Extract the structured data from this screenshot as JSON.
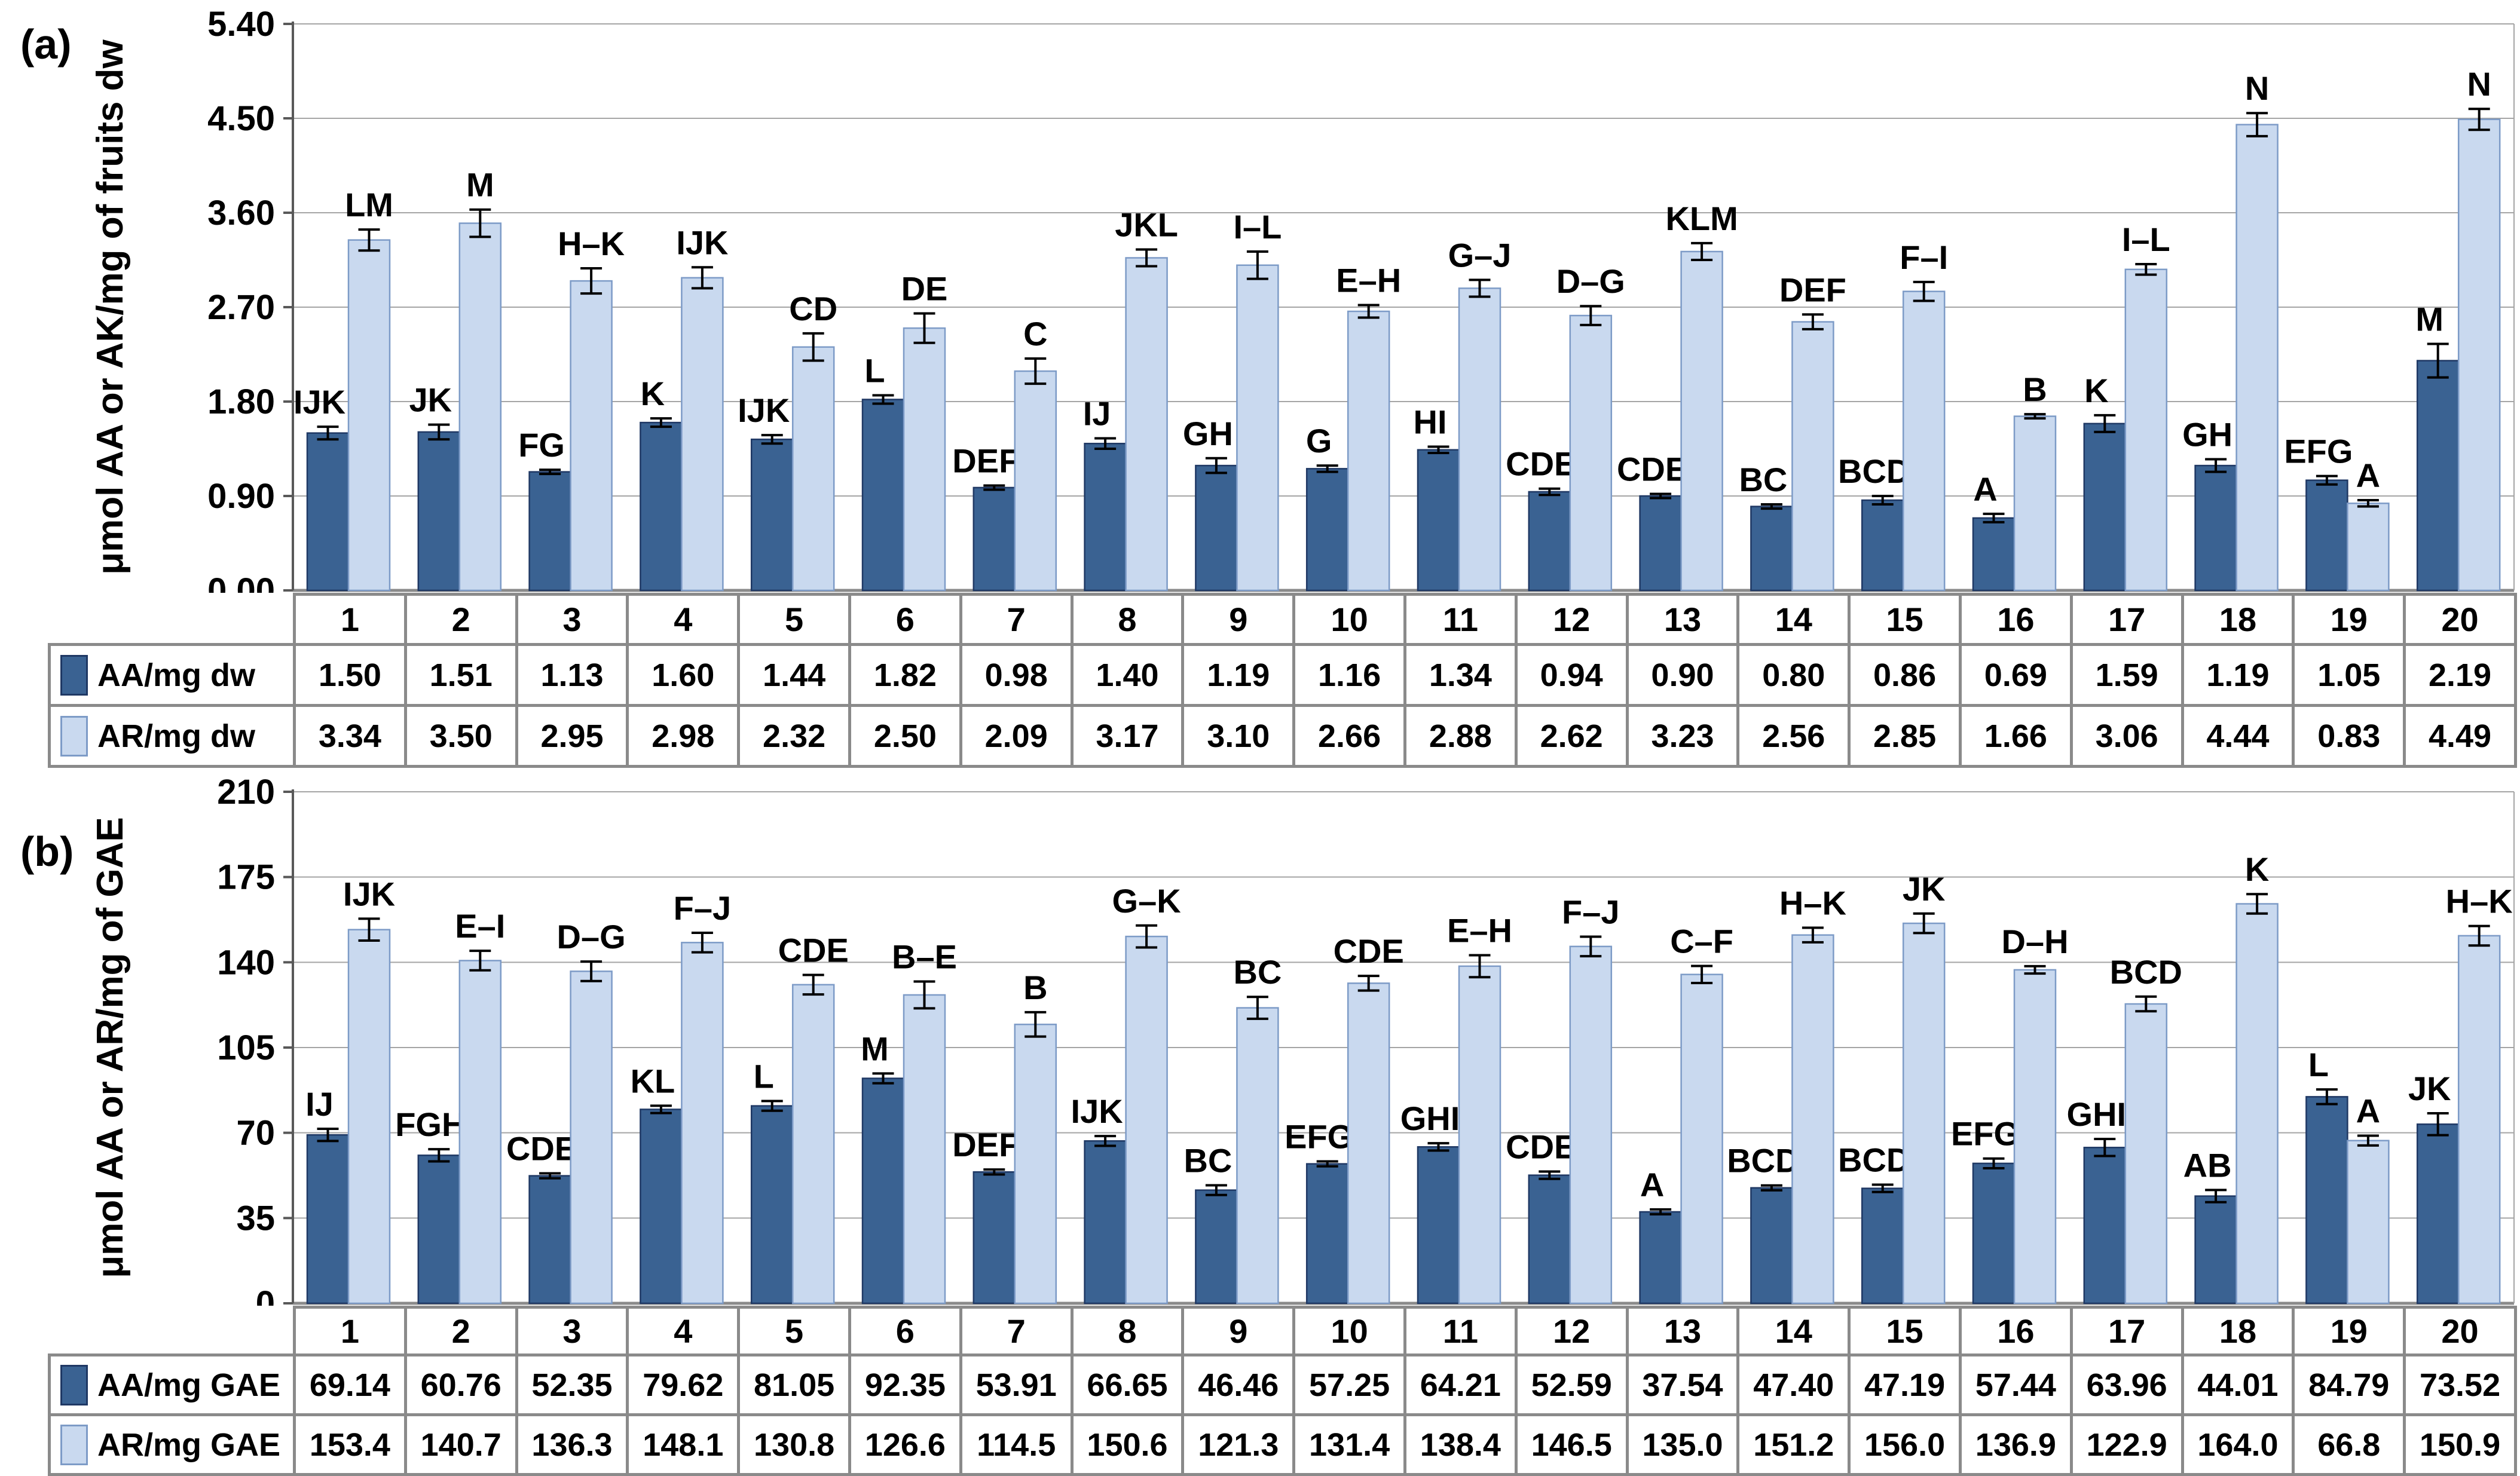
{
  "colors": {
    "aa_fill": "#3A6292",
    "aa_stroke": "#1F3864",
    "ar_fill": "#C9D9EF",
    "ar_stroke": "#7D9BC7",
    "gridline": "#A5A5A5",
    "axis": "#595959",
    "baseline": "#8A8A8A",
    "error_bar": "#000000",
    "table_border": "#8A8A8A"
  },
  "chart_data": [
    {
      "type": "bar",
      "panel_label": "(a)",
      "y_title": "μmol AA or AK/mg of fruits dw",
      "ylim": [
        0,
        5.4
      ],
      "y_ticks": [
        "0.00",
        "0.90",
        "1.80",
        "2.70",
        "3.60",
        "4.50",
        "5.40"
      ],
      "grid": true,
      "error_bars": true,
      "legend_position": "table-left",
      "categories": [
        "1",
        "2",
        "3",
        "4",
        "5",
        "6",
        "7",
        "8",
        "9",
        "10",
        "11",
        "12",
        "13",
        "14",
        "15",
        "16",
        "17",
        "18",
        "19",
        "20"
      ],
      "series": [
        {
          "name": "AA/mg dw",
          "values": [
            1.5,
            1.51,
            1.13,
            1.6,
            1.44,
            1.82,
            0.98,
            1.4,
            1.19,
            1.16,
            1.34,
            0.94,
            0.9,
            0.8,
            0.86,
            0.69,
            1.59,
            1.19,
            1.05,
            2.19
          ],
          "table_values": [
            "1.50",
            "1.51",
            "1.13",
            "1.60",
            "1.44",
            "1.82",
            "0.98",
            "1.40",
            "1.19",
            "1.16",
            "1.34",
            "0.94",
            "0.90",
            "0.80",
            "0.86",
            "0.69",
            "1.59",
            "1.19",
            "1.05",
            "2.19"
          ],
          "errors": [
            0.06,
            0.07,
            0.02,
            0.04,
            0.04,
            0.04,
            0.02,
            0.05,
            0.07,
            0.03,
            0.03,
            0.03,
            0.02,
            0.02,
            0.04,
            0.04,
            0.08,
            0.06,
            0.04,
            0.16
          ],
          "letters": [
            "IJK",
            "JK",
            "FG",
            "K",
            "IJK",
            "L",
            "DEF",
            "IJ",
            "GH",
            "G",
            "HI",
            "CDE",
            "CDE",
            "BC",
            "BCD",
            "A",
            "K",
            "GH",
            "EFG",
            "M"
          ]
        },
        {
          "name": "AR/mg dw",
          "values": [
            3.34,
            3.5,
            2.95,
            2.98,
            2.32,
            2.5,
            2.09,
            3.17,
            3.1,
            2.66,
            2.88,
            2.62,
            3.23,
            2.56,
            2.85,
            1.66,
            3.06,
            4.44,
            0.83,
            4.49
          ],
          "table_values": [
            "3.34",
            "3.50",
            "2.95",
            "2.98",
            "2.32",
            "2.50",
            "2.09",
            "3.17",
            "3.10",
            "2.66",
            "2.88",
            "2.62",
            "3.23",
            "2.56",
            "2.85",
            "1.66",
            "3.06",
            "4.44",
            "0.83",
            "4.49"
          ],
          "errors": [
            0.1,
            0.13,
            0.12,
            0.1,
            0.13,
            0.14,
            0.12,
            0.08,
            0.13,
            0.06,
            0.08,
            0.09,
            0.08,
            0.07,
            0.09,
            0.02,
            0.05,
            0.11,
            0.03,
            0.1
          ],
          "letters": [
            "LM",
            "M",
            "H–K",
            "IJK",
            "CD",
            "DE",
            "C",
            "JKL",
            "I–L",
            "E–H",
            "G–J",
            "D–G",
            "KLM",
            "DEF",
            "F–I",
            "B",
            "I–L",
            "N",
            "A",
            "N"
          ]
        }
      ]
    },
    {
      "type": "bar",
      "panel_label": "(b)",
      "y_title": "μmol AA or AR/mg of GAE",
      "ylim": [
        0,
        210
      ],
      "y_ticks": [
        "0",
        "35",
        "70",
        "105",
        "140",
        "175",
        "210"
      ],
      "grid": true,
      "error_bars": true,
      "legend_position": "table-left",
      "categories": [
        "1",
        "2",
        "3",
        "4",
        "5",
        "6",
        "7",
        "8",
        "9",
        "10",
        "11",
        "12",
        "13",
        "14",
        "15",
        "16",
        "17",
        "18",
        "19",
        "20"
      ],
      "series": [
        {
          "name": "AA/mg GAE",
          "values": [
            69.14,
            60.76,
            52.35,
            79.62,
            81.05,
            92.35,
            53.91,
            66.65,
            46.46,
            57.25,
            64.21,
            52.59,
            37.54,
            47.4,
            47.19,
            57.44,
            63.96,
            44.01,
            84.79,
            73.52
          ],
          "table_values": [
            "69.14",
            "60.76",
            "52.35",
            "79.62",
            "81.05",
            "92.35",
            "53.91",
            "66.65",
            "46.46",
            "57.25",
            "64.21",
            "52.59",
            "37.54",
            "47.40",
            "47.19",
            "57.44",
            "63.96",
            "44.01",
            "84.79",
            "73.52"
          ],
          "errors": [
            2.5,
            2.5,
            1.0,
            1.5,
            2.0,
            2.0,
            1.0,
            2.0,
            2.0,
            1.0,
            1.5,
            1.5,
            1.0,
            1.0,
            1.5,
            2.0,
            3.5,
            2.5,
            3.0,
            4.5
          ],
          "letters": [
            "IJ",
            "FGH",
            "CDE",
            "KL",
            "L",
            "M",
            "DEF",
            "IJK",
            "BC",
            "EFG",
            "GHI",
            "CDE",
            "A",
            "BCD",
            "BCD",
            "EFG",
            "GHI",
            "AB",
            "L",
            "JK"
          ]
        },
        {
          "name": "AR/mg GAE",
          "values": [
            153.4,
            140.7,
            136.3,
            148.1,
            130.8,
            126.6,
            114.5,
            150.6,
            121.3,
            131.4,
            138.4,
            146.5,
            135.0,
            151.2,
            156.0,
            136.9,
            122.9,
            164.0,
            66.8,
            150.9
          ],
          "table_values": [
            "153.4",
            "140.7",
            "136.3",
            "148.1",
            "130.8",
            "126.6",
            "114.5",
            "150.6",
            "121.3",
            "131.4",
            "138.4",
            "146.5",
            "135.0",
            "151.2",
            "156.0",
            "136.9",
            "122.9",
            "164.0",
            "66.8",
            "150.9"
          ],
          "errors": [
            4.5,
            4.0,
            4.0,
            4.0,
            4.0,
            5.5,
            5.0,
            4.5,
            4.5,
            3.0,
            4.5,
            4.0,
            3.5,
            3.0,
            4.0,
            1.5,
            3.0,
            4.0,
            2.0,
            4.0
          ],
          "letters": [
            "IJK",
            "E–I",
            "D–G",
            "F–J",
            "CDE",
            "B–E",
            "B",
            "G–K",
            "BC",
            "CDE",
            "E–H",
            "F–J",
            "C–F",
            "H–K",
            "JK",
            "D–H",
            "BCD",
            "K",
            "A",
            "H–K"
          ]
        }
      ]
    }
  ]
}
